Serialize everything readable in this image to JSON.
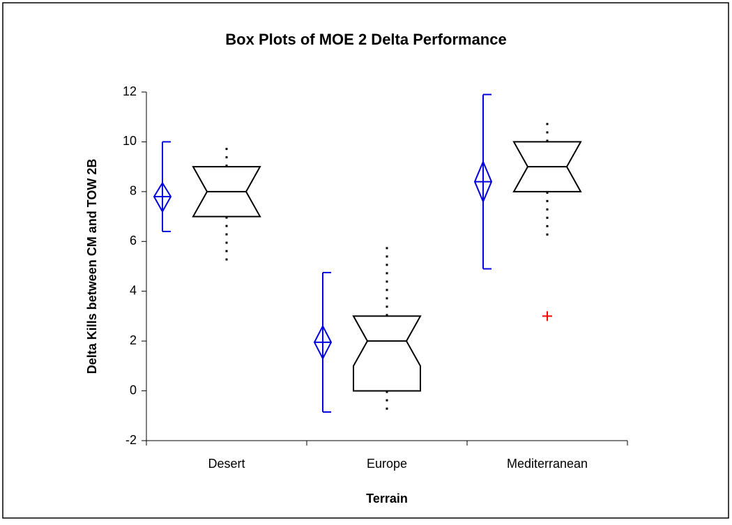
{
  "chart_data": {
    "type": "box",
    "title": "Box Plots of MOE 2 Delta Performance",
    "x_label": "Terrain",
    "y_label": "Delta Kills between CM and TOW 2B",
    "categories": [
      "Desert",
      "Europe",
      "Mediterranean"
    ],
    "boxes": [
      {
        "q1": 7,
        "median": 8,
        "q3": 9,
        "notch_low": 7,
        "notch_high": 9,
        "whisker_low": 5,
        "whisker_high": 9.9,
        "outliers": []
      },
      {
        "q1": 0,
        "median": 2,
        "q3": 3,
        "notch_low": 1,
        "notch_high": 3,
        "whisker_low": -1,
        "whisker_high": 5.8,
        "outliers": []
      },
      {
        "q1": 8,
        "median": 9,
        "q3": 10,
        "notch_low": 8,
        "notch_high": 10,
        "whisker_low": 6,
        "whisker_high": 10.9,
        "outliers": [
          3
        ]
      }
    ],
    "means": [
      {
        "mean": 7.8,
        "ci_low": 7.2,
        "ci_high": 8.35,
        "range_low": 6.4,
        "range_high": 10
      },
      {
        "mean": 1.95,
        "ci_low": 1.3,
        "ci_high": 2.6,
        "range_low": -0.85,
        "range_high": 4.75
      },
      {
        "mean": 8.4,
        "ci_low": 7.6,
        "ci_high": 9.2,
        "range_low": 4.9,
        "range_high": 11.9
      }
    ],
    "box_color": "#000000",
    "mean_color": "#0000e0",
    "outlier_color": "#ff0000",
    "ylim": [
      -2,
      12
    ],
    "yticks": [
      -2,
      0,
      2,
      4,
      6,
      8,
      10,
      12
    ]
  }
}
